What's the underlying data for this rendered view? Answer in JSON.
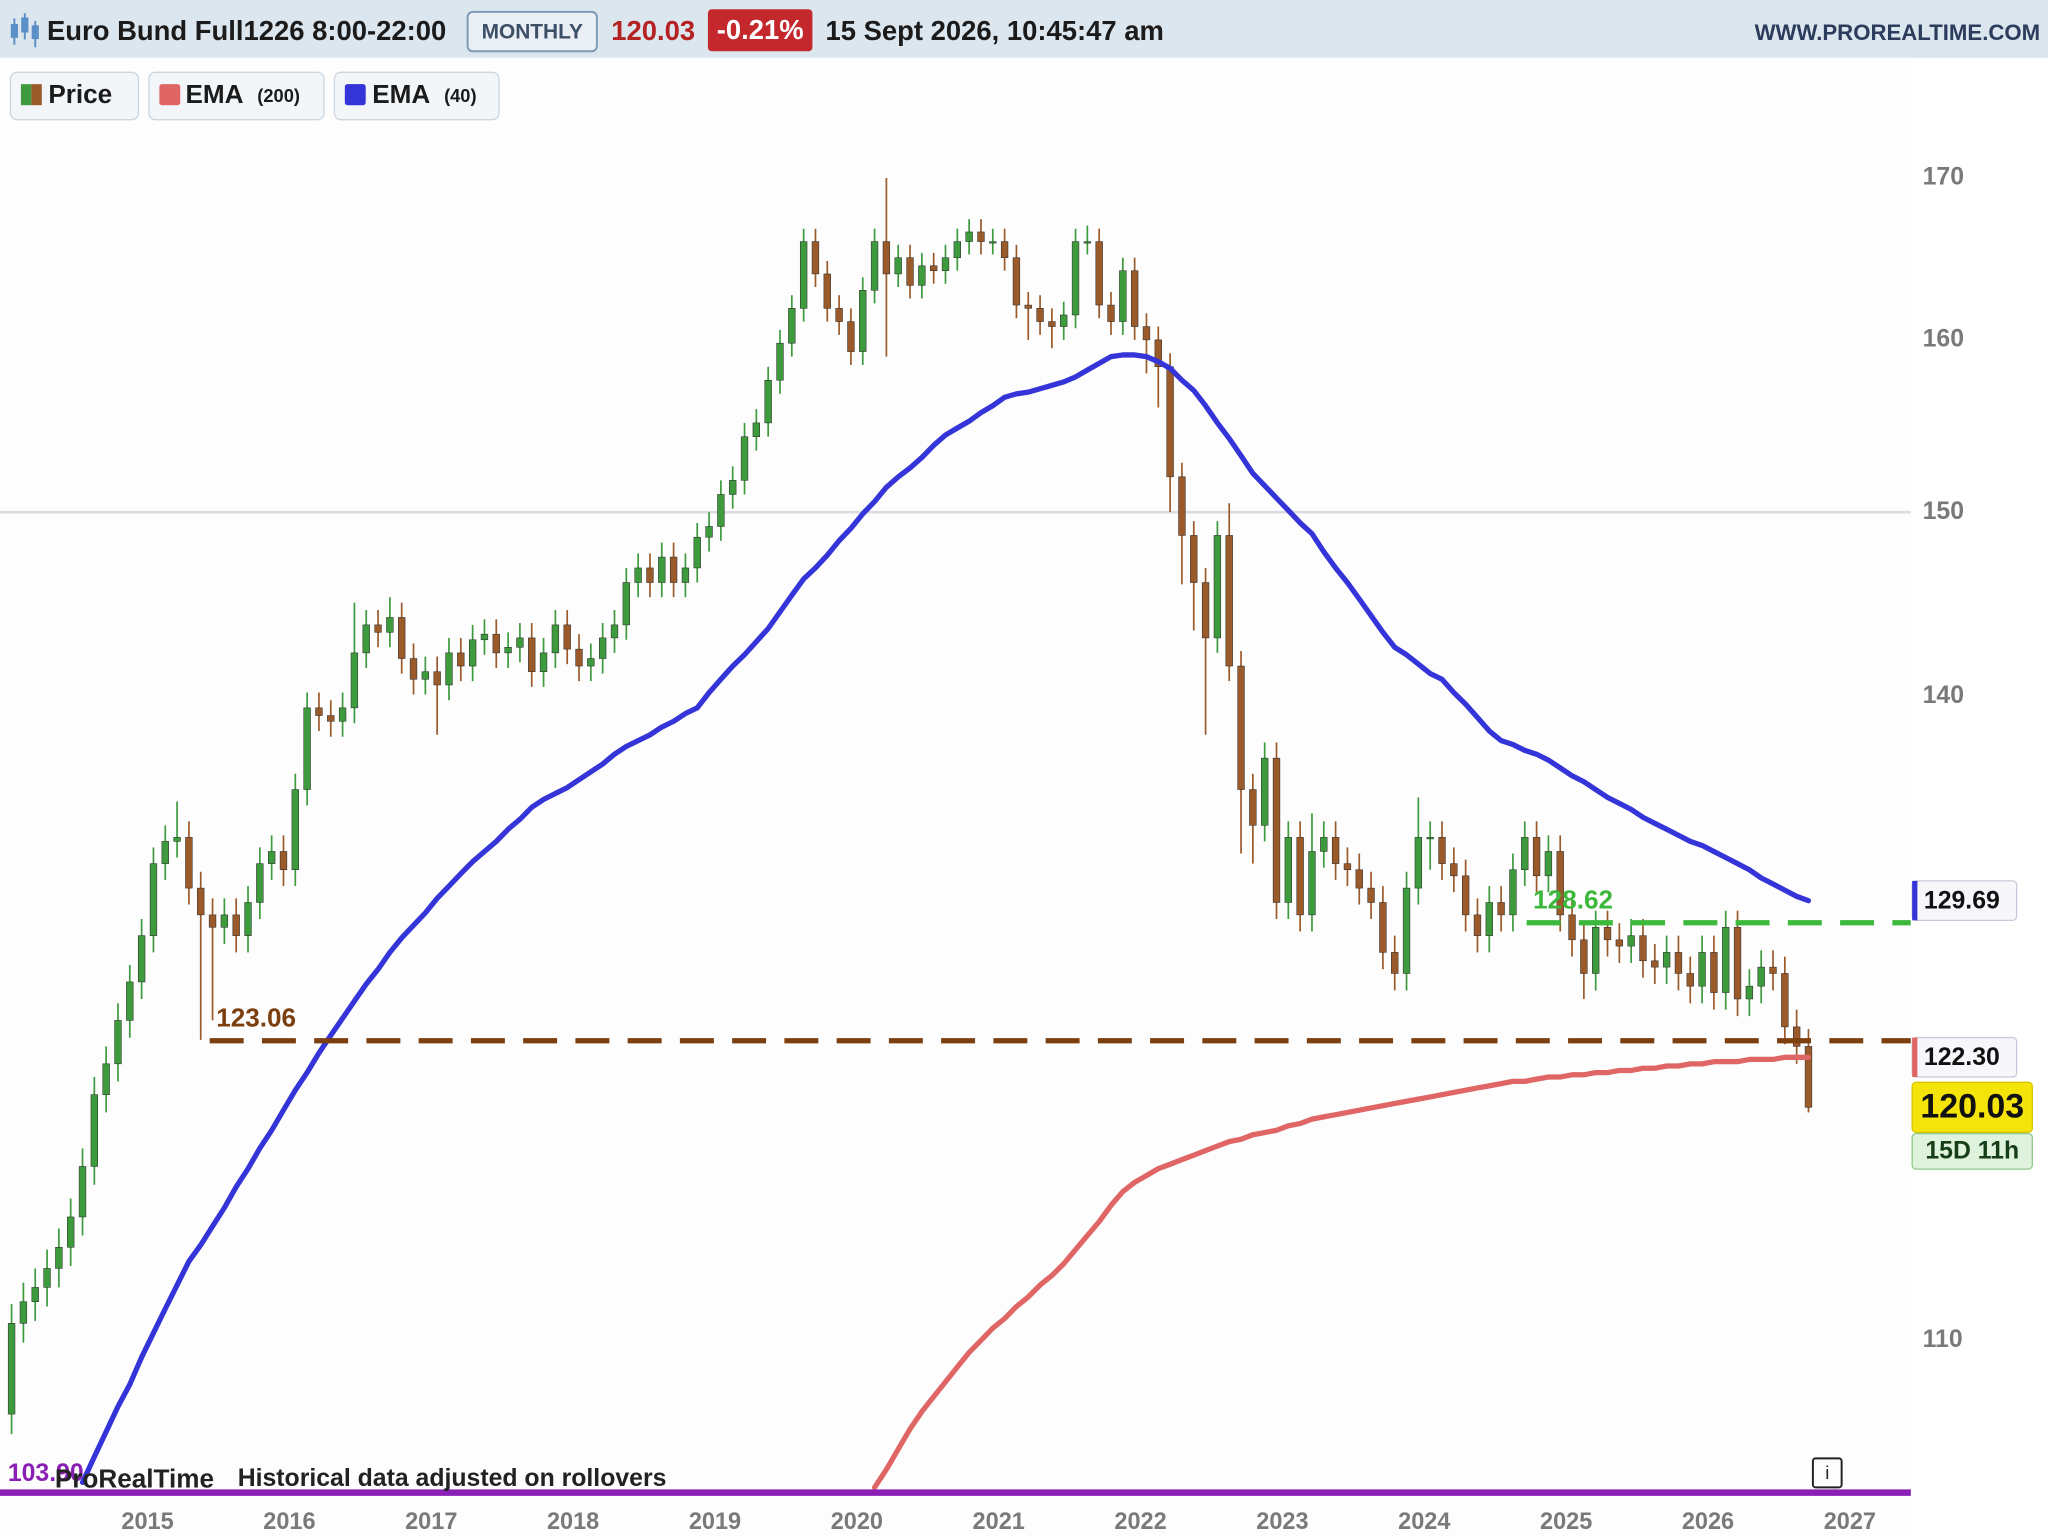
{
  "header": {
    "instrument": "Euro Bund Full1226 8:00-22:00",
    "period": "MONTHLY",
    "price": "120.03",
    "change": "-0.21%",
    "datetime": "15 Sept 2026, 10:45:47 am",
    "site": "WWW.PROREALTIME.COM"
  },
  "footer": {
    "brand": "ProRealTime",
    "note": "Historical data adjusted on rollovers",
    "countdown": "15D 11h"
  },
  "chart_data": {
    "type": "candlestick",
    "log_scale": true,
    "xlim": [
      2013.96,
      2027.43
    ],
    "xticks": [
      2015,
      2016,
      2017,
      2018,
      2019,
      2020,
      2021,
      2022,
      2023,
      2024,
      2025,
      2026,
      2027
    ],
    "ylim": [
      103.9,
      178
    ],
    "yticks": [
      110,
      140,
      150,
      160,
      170
    ],
    "grid_lines": [
      150
    ],
    "grid_color": "#dcdce4",
    "price": {
      "name": "Price",
      "up_color": "#3d9a3d",
      "down_color": "#9a5a2a",
      "last_label": "120.03",
      "open": [
        107.0,
        110.7,
        111.6,
        112.2,
        113.0,
        113.9,
        115.2,
        117.4,
        120.6,
        122.0,
        124.0,
        125.8,
        128.0,
        131.5,
        132.6,
        132.8,
        130.3,
        129.0,
        128.4,
        129.0,
        128.0,
        129.6,
        131.5,
        132.1,
        131.2,
        135.2,
        139.4,
        139.0,
        138.7,
        139.4,
        142.3,
        143.8,
        143.4,
        144.2,
        142.0,
        140.9,
        141.3,
        140.6,
        142.3,
        141.6,
        143.0,
        143.3,
        142.3,
        142.6,
        143.1,
        141.3,
        142.3,
        143.8,
        142.5,
        141.6,
        142.0,
        143.1,
        143.8,
        146.1,
        146.9,
        146.1,
        147.5,
        146.1,
        146.9,
        148.6,
        149.2,
        151.0,
        151.8,
        154.3,
        155.1,
        157.6,
        159.8,
        161.9,
        166.0,
        164.0,
        161.9,
        161.1,
        159.3,
        163.0,
        166.0,
        164.0,
        165.0,
        163.3,
        164.5,
        164.2,
        165.0,
        166.0,
        166.6,
        166.0,
        166.0,
        165.0,
        162.1,
        161.9,
        161.1,
        160.8,
        161.5,
        166.0,
        166.0,
        162.1,
        161.1,
        164.2,
        160.8,
        160.0,
        158.4,
        152.0,
        148.7,
        146.1,
        143.1,
        148.7,
        141.6,
        135.2,
        133.4,
        136.8,
        129.6,
        132.8,
        129.0,
        132.1,
        132.8,
        131.5,
        131.2,
        130.3,
        129.6,
        127.2,
        126.2,
        130.3,
        132.8,
        132.8,
        131.5,
        130.9,
        129.0,
        128.0,
        129.6,
        129.0,
        131.2,
        132.8,
        130.9,
        132.1,
        129.0,
        127.8,
        126.2,
        128.4,
        127.8,
        127.5,
        128.0,
        126.8,
        126.5,
        127.2,
        126.2,
        125.6,
        127.2,
        125.3,
        128.4,
        125.0,
        125.6,
        126.5,
        126.2,
        123.7,
        122.8
      ],
      "high": [
        111.5,
        112.4,
        113.0,
        113.8,
        114.7,
        116.0,
        118.2,
        121.4,
        122.8,
        124.8,
        126.6,
        128.8,
        132.3,
        133.4,
        134.6,
        133.6,
        131.1,
        129.8,
        129.8,
        129.8,
        130.4,
        132.3,
        132.9,
        132.9,
        136.0,
        140.2,
        140.2,
        139.8,
        140.2,
        145.0,
        144.6,
        144.6,
        145.3,
        145.0,
        142.8,
        142.1,
        142.1,
        143.1,
        143.1,
        143.8,
        144.1,
        144.1,
        143.4,
        143.9,
        143.9,
        143.1,
        144.6,
        144.6,
        143.3,
        142.8,
        143.9,
        144.6,
        146.9,
        147.7,
        147.7,
        148.3,
        148.3,
        147.7,
        149.4,
        150.0,
        151.8,
        152.6,
        155.1,
        155.9,
        158.4,
        160.6,
        162.7,
        166.8,
        166.8,
        164.8,
        162.7,
        161.9,
        163.8,
        166.8,
        170.0,
        165.8,
        165.8,
        165.3,
        165.3,
        165.8,
        166.8,
        167.4,
        167.4,
        166.8,
        166.8,
        165.8,
        162.9,
        162.7,
        161.9,
        162.3,
        166.8,
        167.0,
        166.8,
        162.9,
        165.0,
        165.0,
        161.6,
        160.8,
        159.2,
        152.8,
        149.5,
        146.9,
        149.5,
        150.5,
        142.4,
        136.0,
        137.6,
        137.6,
        133.6,
        133.6,
        134.0,
        133.6,
        133.6,
        132.3,
        132.0,
        131.1,
        130.4,
        128.0,
        131.1,
        134.8,
        133.6,
        133.6,
        132.3,
        131.7,
        129.8,
        130.4,
        130.4,
        132.0,
        133.6,
        133.6,
        132.9,
        132.9,
        129.8,
        128.6,
        129.2,
        129.2,
        128.6,
        128.8,
        128.8,
        127.6,
        128.0,
        128.0,
        127.0,
        128.0,
        128.0,
        129.2,
        129.2,
        126.4,
        127.3,
        127.3,
        127.0,
        124.5,
        123.6
      ],
      "low": [
        106.2,
        109.9,
        110.8,
        111.4,
        112.2,
        113.1,
        114.4,
        116.6,
        119.8,
        121.2,
        123.2,
        125.0,
        127.2,
        130.7,
        131.8,
        129.5,
        123.1,
        124.0,
        127.6,
        127.2,
        127.2,
        128.8,
        130.7,
        130.4,
        130.4,
        134.4,
        138.2,
        137.9,
        137.9,
        138.6,
        141.5,
        142.6,
        142.6,
        141.2,
        140.1,
        140.1,
        138.0,
        139.8,
        140.8,
        140.8,
        142.2,
        141.5,
        141.5,
        141.8,
        140.5,
        140.5,
        141.5,
        141.7,
        140.8,
        140.8,
        141.2,
        142.3,
        143.0,
        145.3,
        145.3,
        145.3,
        145.3,
        145.3,
        146.1,
        147.8,
        148.4,
        150.2,
        151.0,
        153.5,
        154.3,
        156.8,
        159.0,
        161.1,
        163.2,
        161.1,
        160.3,
        158.5,
        158.5,
        162.2,
        159.0,
        163.2,
        162.5,
        162.5,
        163.4,
        163.4,
        164.2,
        165.2,
        165.2,
        165.2,
        164.2,
        161.3,
        160.0,
        160.3,
        159.5,
        160.0,
        160.7,
        165.2,
        161.3,
        160.3,
        160.3,
        160.0,
        158.0,
        156.0,
        150.0,
        146.0,
        143.5,
        138.0,
        142.3,
        140.8,
        132.0,
        131.5,
        132.6,
        128.8,
        128.8,
        128.2,
        128.2,
        131.3,
        130.7,
        130.4,
        129.5,
        128.8,
        126.4,
        125.4,
        125.4,
        129.5,
        131.2,
        130.7,
        130.1,
        128.2,
        127.2,
        127.2,
        128.2,
        128.2,
        130.4,
        130.1,
        130.1,
        128.2,
        127.0,
        125.0,
        125.4,
        127.0,
        126.7,
        126.7,
        126.0,
        125.7,
        125.7,
        125.4,
        124.8,
        124.8,
        124.5,
        124.5,
        124.2,
        124.2,
        124.8,
        125.4,
        122.9,
        122.0,
        119.8
      ],
      "close": [
        110.7,
        111.6,
        112.2,
        113.0,
        113.9,
        115.2,
        117.4,
        120.6,
        122.0,
        124.0,
        125.8,
        128.0,
        131.5,
        132.6,
        132.8,
        130.3,
        129.0,
        128.4,
        129.0,
        128.0,
        129.6,
        131.5,
        132.1,
        131.2,
        135.2,
        139.4,
        139.0,
        138.7,
        139.4,
        142.3,
        143.8,
        143.4,
        144.2,
        142.0,
        140.9,
        141.3,
        140.6,
        142.3,
        141.6,
        143.0,
        143.3,
        142.3,
        142.6,
        143.1,
        141.3,
        142.3,
        143.8,
        142.5,
        141.6,
        142.0,
        143.1,
        143.8,
        146.1,
        146.9,
        146.1,
        147.5,
        146.1,
        146.9,
        148.6,
        149.2,
        151.0,
        151.8,
        154.3,
        155.1,
        157.6,
        159.8,
        161.9,
        166.0,
        164.0,
        161.9,
        161.1,
        159.3,
        163.0,
        166.0,
        164.0,
        165.0,
        163.3,
        164.5,
        164.2,
        165.0,
        166.0,
        166.6,
        166.0,
        166.0,
        165.0,
        162.1,
        161.9,
        161.1,
        160.8,
        161.5,
        166.0,
        166.0,
        162.1,
        161.1,
        164.2,
        160.8,
        160.0,
        158.4,
        152.0,
        148.7,
        146.1,
        143.1,
        148.7,
        141.6,
        135.2,
        133.4,
        136.8,
        129.6,
        132.8,
        129.0,
        132.1,
        132.8,
        131.5,
        131.2,
        130.3,
        129.6,
        127.2,
        126.2,
        130.3,
        132.8,
        132.8,
        131.5,
        130.9,
        129.0,
        128.0,
        129.6,
        129.0,
        131.2,
        132.8,
        130.9,
        132.1,
        129.0,
        127.8,
        126.2,
        128.4,
        127.8,
        127.5,
        128.0,
        126.8,
        126.5,
        127.2,
        126.2,
        125.6,
        127.2,
        125.3,
        128.4,
        125.0,
        125.6,
        126.5,
        126.2,
        123.7,
        122.8,
        120.03
      ]
    },
    "series": [
      {
        "name": "EMA",
        "period": "(200)",
        "color": "#e06666",
        "last_label": "122.30",
        "values": [
          null,
          null,
          null,
          null,
          null,
          null,
          null,
          null,
          null,
          null,
          null,
          null,
          null,
          null,
          null,
          null,
          null,
          null,
          null,
          null,
          null,
          null,
          null,
          null,
          null,
          null,
          null,
          null,
          null,
          null,
          null,
          null,
          null,
          null,
          null,
          null,
          null,
          null,
          null,
          null,
          null,
          null,
          null,
          null,
          null,
          null,
          null,
          null,
          null,
          null,
          null,
          null,
          null,
          null,
          null,
          null,
          null,
          null,
          null,
          null,
          null,
          null,
          null,
          null,
          null,
          null,
          null,
          null,
          null,
          null,
          null,
          null,
          null,
          104.1,
          104.8,
          105.6,
          106.4,
          107.1,
          107.7,
          108.3,
          108.9,
          109.5,
          110.0,
          110.5,
          110.9,
          111.4,
          111.8,
          112.3,
          112.7,
          113.2,
          113.8,
          114.4,
          115.0,
          115.7,
          116.3,
          116.7,
          117.0,
          117.3,
          117.5,
          117.7,
          117.9,
          118.1,
          118.3,
          118.5,
          118.6,
          118.8,
          118.9,
          119.0,
          119.2,
          119.3,
          119.5,
          119.6,
          119.7,
          119.8,
          119.9,
          120.0,
          120.1,
          120.2,
          120.3,
          120.4,
          120.5,
          120.6,
          120.7,
          120.8,
          120.9,
          121.0,
          121.1,
          121.2,
          121.2,
          121.3,
          121.4,
          121.4,
          121.5,
          121.5,
          121.6,
          121.6,
          121.7,
          121.7,
          121.8,
          121.8,
          121.9,
          121.9,
          122.0,
          122.0,
          122.1,
          122.1,
          122.1,
          122.2,
          122.2,
          122.2,
          122.3,
          122.3,
          122.3
        ]
      },
      {
        "name": "EMA",
        "period": "(40)",
        "color": "#3434d8",
        "last_label": "129.69",
        "values": [
          null,
          null,
          null,
          null,
          null,
          null,
          104.3,
          105.3,
          106.3,
          107.3,
          108.2,
          109.3,
          110.3,
          111.3,
          112.3,
          113.3,
          114.0,
          114.8,
          115.6,
          116.5,
          117.3,
          118.2,
          119.0,
          119.9,
          120.8,
          121.6,
          122.5,
          123.3,
          124.1,
          124.9,
          125.7,
          126.4,
          127.2,
          127.9,
          128.5,
          129.1,
          129.8,
          130.4,
          131.0,
          131.6,
          132.1,
          132.6,
          133.2,
          133.7,
          134.3,
          134.7,
          135.0,
          135.3,
          135.7,
          136.1,
          136.5,
          137.0,
          137.4,
          137.7,
          138.0,
          138.4,
          138.7,
          139.1,
          139.4,
          140.2,
          140.9,
          141.6,
          142.2,
          142.9,
          143.6,
          144.5,
          145.4,
          146.3,
          146.9,
          147.6,
          148.4,
          149.1,
          149.9,
          150.6,
          151.4,
          152.0,
          152.5,
          153.1,
          153.8,
          154.4,
          154.8,
          155.2,
          155.7,
          156.1,
          156.6,
          156.8,
          156.9,
          157.1,
          157.3,
          157.5,
          157.8,
          158.2,
          158.6,
          159.0,
          159.1,
          159.1,
          159.0,
          158.7,
          158.3,
          157.6,
          157.0,
          156.1,
          155.1,
          154.2,
          153.2,
          152.2,
          151.5,
          150.8,
          150.1,
          149.4,
          148.8,
          147.8,
          146.9,
          146.1,
          145.2,
          144.3,
          143.4,
          142.6,
          142.2,
          141.7,
          141.2,
          140.9,
          140.2,
          139.6,
          138.9,
          138.2,
          137.7,
          137.5,
          137.2,
          137.0,
          136.7,
          136.3,
          135.9,
          135.6,
          135.2,
          134.8,
          134.5,
          134.2,
          133.8,
          133.5,
          133.2,
          132.9,
          132.6,
          132.4,
          132.1,
          131.8,
          131.5,
          131.2,
          130.8,
          130.5,
          130.2,
          129.9,
          129.69
        ]
      }
    ],
    "levels": [
      {
        "value": 123.06,
        "color": "#7b3f10"
      },
      {
        "value": 128.62,
        "color": "#3cb83c"
      }
    ],
    "floor": {
      "value": 103.9,
      "label": "103.90",
      "color": "#8a1fb5"
    }
  }
}
